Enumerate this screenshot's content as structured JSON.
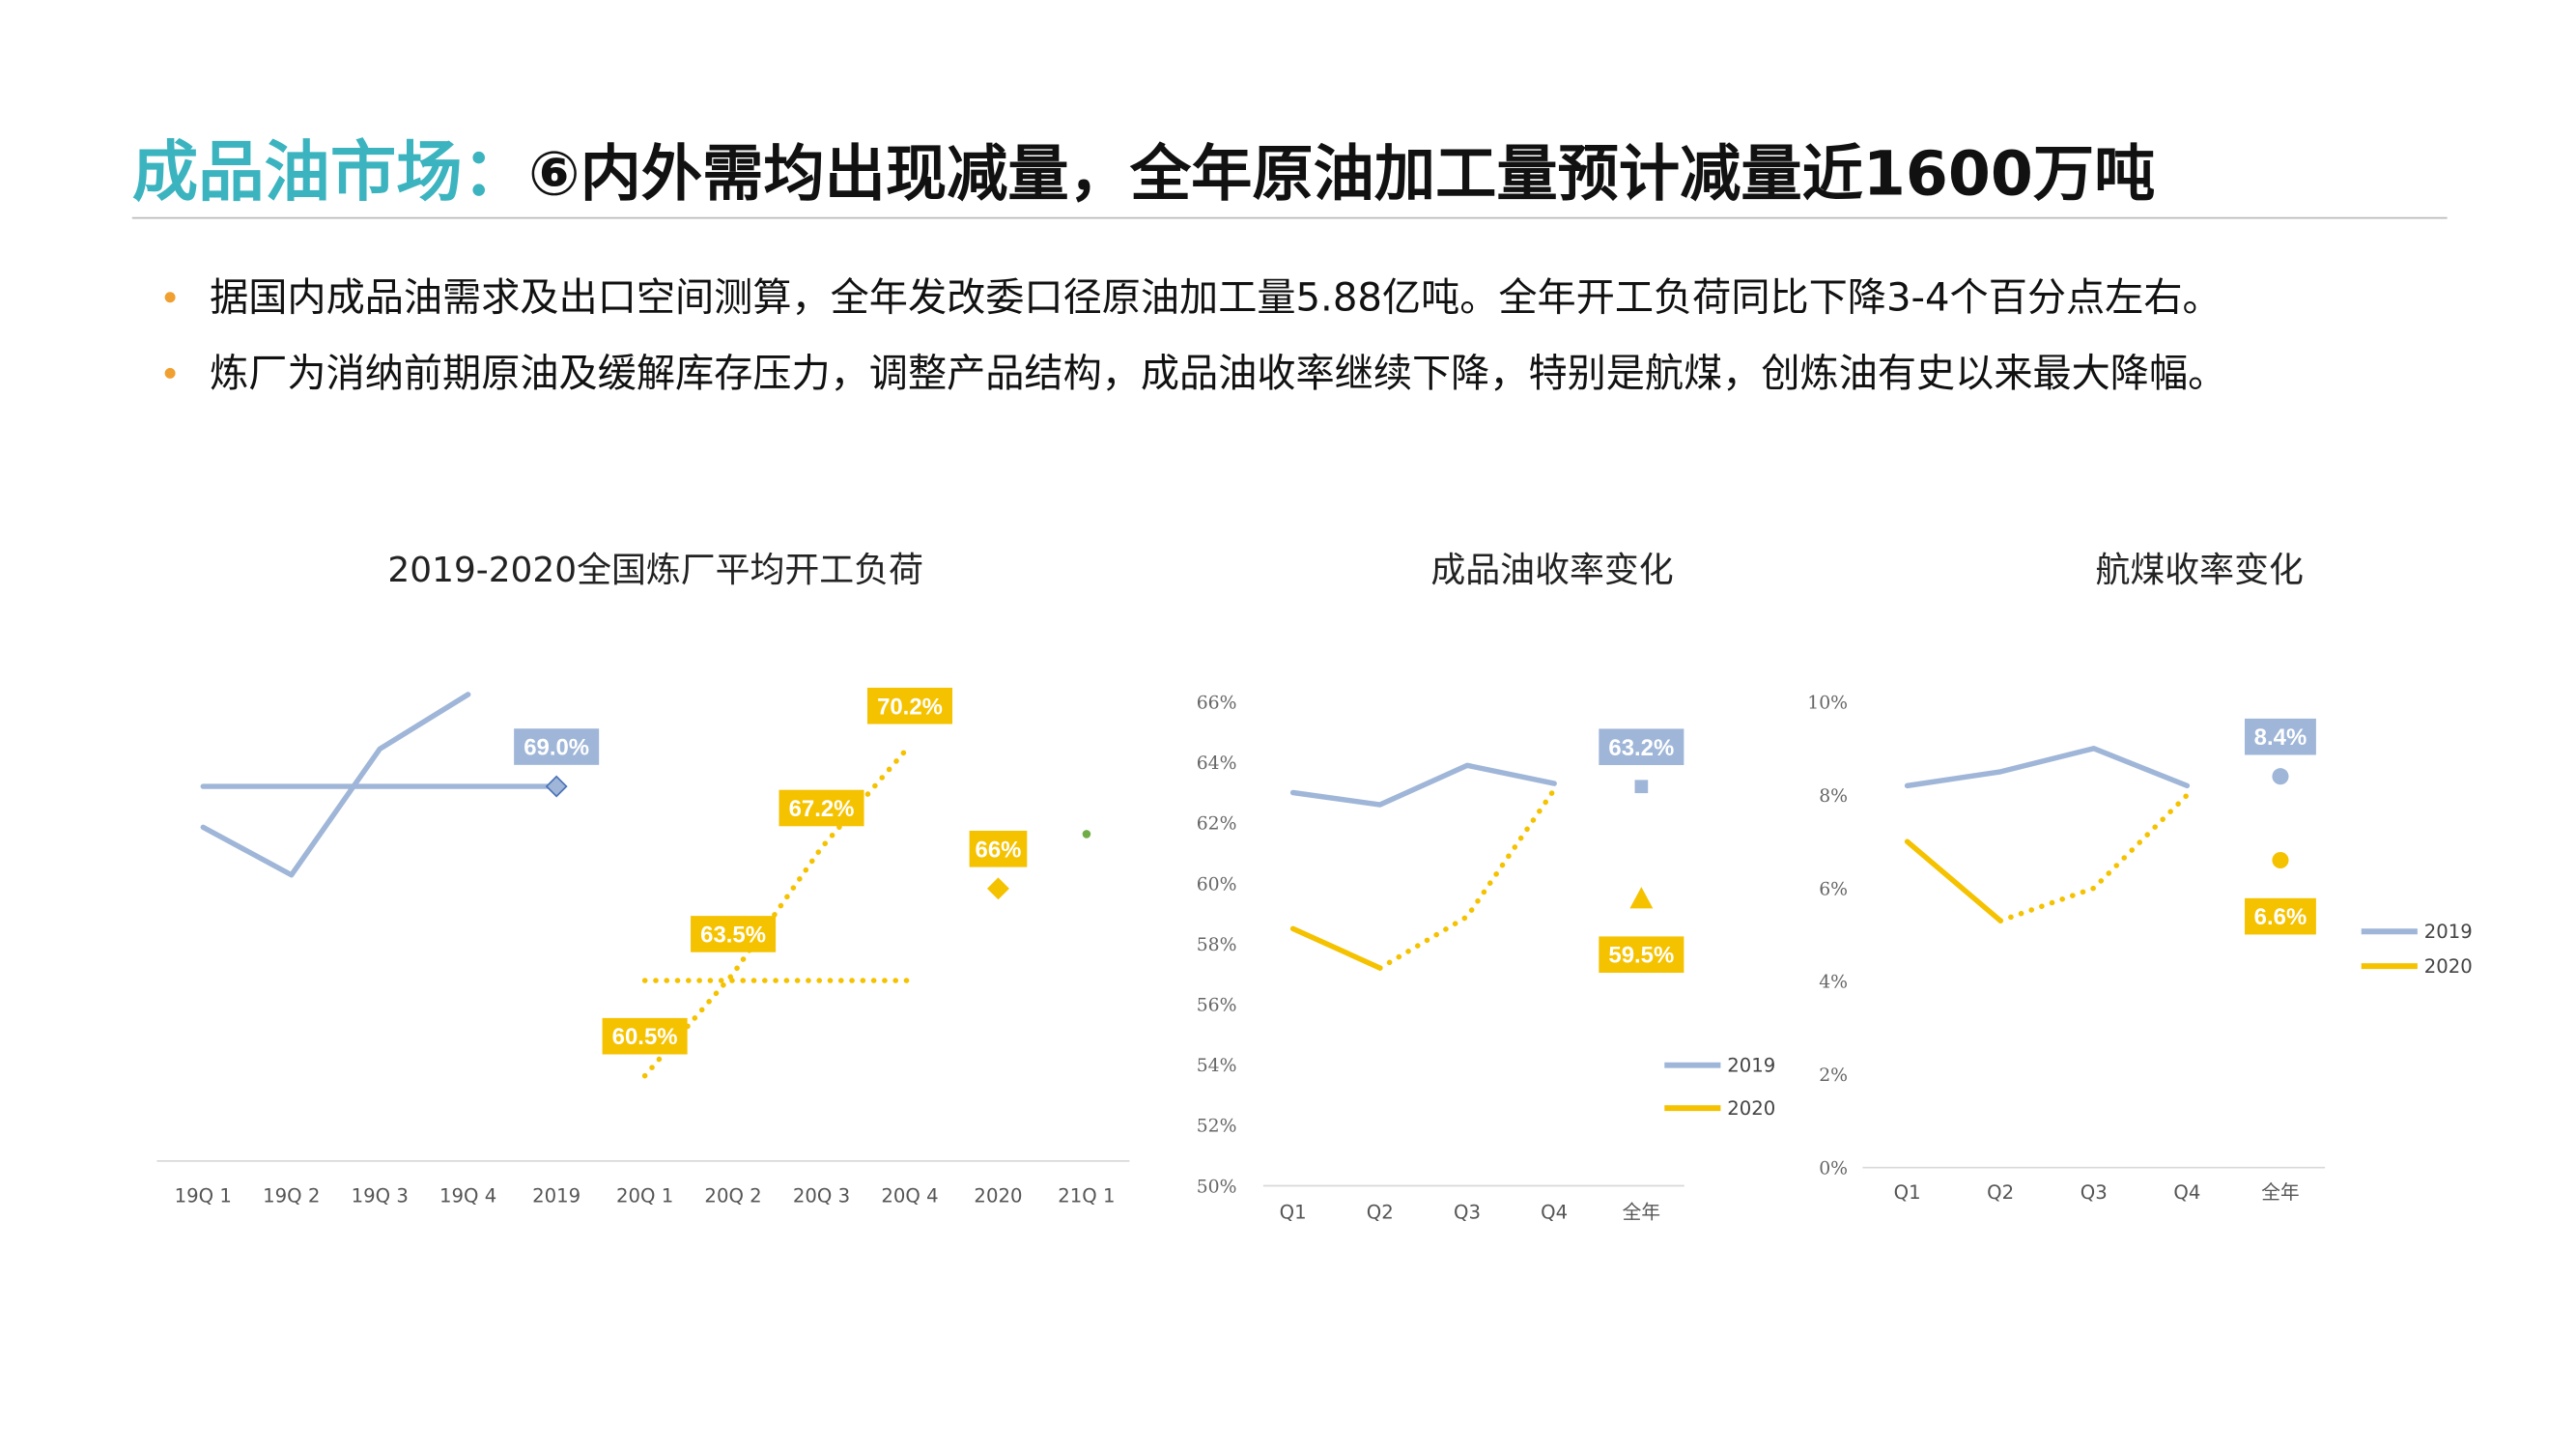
{
  "header": {
    "title_prefix": "成品油市场：",
    "title_main": "⑥内外需均出现减量，全年原油加工量预计减量近1600万吨"
  },
  "bullets": [
    "据国内成品油需求及出口空间测算，全年发改委口径原油加工量5.88亿吨。全年开工负荷同比下降3-4个百分点左右。",
    "炼厂为消纳前期原油及缓解库存压力，调整产品结构，成品油收率继续下降，特别是航煤，创炼油有史以来最大降幅。"
  ],
  "chart_data": [
    {
      "type": "line",
      "title": "2019-2020全国炼厂平均开工负荷",
      "categories": [
        "19Q 1",
        "19Q 2",
        "19Q 3",
        "19Q 4",
        "2019",
        "20Q 1",
        "20Q 2",
        "20Q 3",
        "20Q 4",
        "2020",
        "21Q 1"
      ],
      "ylim": [
        58,
        72.5
      ],
      "series": [
        {
          "color": "#9fb6d8",
          "values": [
            67.8,
            66.4,
            70.1,
            71.7,
            null,
            null,
            null,
            null,
            null,
            null,
            null
          ]
        },
        {
          "color": "#9fb6d8",
          "marker": "diamond",
          "label_pos": "above",
          "values": [
            69,
            69,
            69,
            69,
            69,
            null,
            null,
            null,
            null,
            null,
            null
          ],
          "value_labels": [
            null,
            null,
            null,
            null,
            "69.0%",
            null,
            null,
            null,
            null,
            null,
            null
          ]
        },
        {
          "color": "#f5c200",
          "dotted_from": 0,
          "label_pos": "above",
          "values": [
            null,
            null,
            null,
            null,
            null,
            60.5,
            63.5,
            67.2,
            70.2,
            null,
            null
          ],
          "value_labels": [
            null,
            null,
            null,
            null,
            null,
            "60.5%",
            "63.5%",
            "67.2%",
            "70.2%",
            null,
            null
          ]
        },
        {
          "color": "#f5c200",
          "dotted_from": 0,
          "values": [
            null,
            null,
            null,
            null,
            null,
            63.3,
            63.3,
            63.3,
            63.3,
            null,
            null
          ]
        },
        {
          "color": "#f5c200",
          "line": false,
          "marker": "diamond",
          "label_pos": "above",
          "values": [
            null,
            null,
            null,
            null,
            null,
            null,
            null,
            null,
            null,
            66,
            null
          ],
          "value_labels": [
            null,
            null,
            null,
            null,
            null,
            null,
            null,
            null,
            null,
            "66%",
            null
          ]
        },
        {
          "color": "#70ad47",
          "line": false,
          "marker": "dot",
          "values": [
            null,
            null,
            null,
            null,
            null,
            null,
            null,
            null,
            null,
            null,
            67.6
          ]
        }
      ]
    },
    {
      "type": "line",
      "title": "成品油收率变化",
      "categories": [
        "Q1",
        "Q2",
        "Q3",
        "Q4",
        "全年"
      ],
      "separate_last": true,
      "legend": "lower right",
      "ylim": [
        50,
        66
      ],
      "yticks": [
        {
          "value": 50,
          "label": "50%"
        },
        {
          "value": 52,
          "label": "52%"
        },
        {
          "value": 54,
          "label": "54%"
        },
        {
          "value": 56,
          "label": "56%"
        },
        {
          "value": 58,
          "label": "58%"
        },
        {
          "value": 60,
          "label": "60%"
        },
        {
          "value": 62,
          "label": "62%"
        },
        {
          "value": 64,
          "label": "64%"
        },
        {
          "value": 66,
          "label": "66%"
        }
      ],
      "series": [
        {
          "name": "2019",
          "color": "#9fb6d8",
          "marker": "square",
          "label_pos": "above",
          "values": [
            63.0,
            62.6,
            63.9,
            63.3,
            63.2
          ],
          "value_labels": [
            null,
            null,
            null,
            null,
            "63.2%"
          ]
        },
        {
          "name": "2020",
          "color": "#f5c200",
          "dotted_from": 1,
          "marker": "triangle",
          "label_pos": "below",
          "values": [
            58.5,
            57.2,
            58.9,
            63.1,
            59.5
          ],
          "value_labels": [
            null,
            null,
            null,
            null,
            "59.5%"
          ]
        }
      ]
    },
    {
      "type": "line",
      "title": "航煤收率变化",
      "categories": [
        "Q1",
        "Q2",
        "Q3",
        "Q4",
        "全年"
      ],
      "separate_last": true,
      "legend": "right",
      "ylim": [
        0,
        10
      ],
      "yticks": [
        {
          "value": 0,
          "label": "0%"
        },
        {
          "value": 2,
          "label": "2%"
        },
        {
          "value": 4,
          "label": "4%"
        },
        {
          "value": 6,
          "label": "6%"
        },
        {
          "value": 8,
          "label": "8%"
        },
        {
          "value": 10,
          "label": "10%"
        }
      ],
      "series": [
        {
          "name": "2019",
          "color": "#9fb6d8",
          "marker": "circle",
          "label_pos": "above",
          "values": [
            8.2,
            8.5,
            9.0,
            8.2,
            8.4
          ],
          "value_labels": [
            null,
            null,
            null,
            null,
            "8.4%"
          ]
        },
        {
          "name": "2020",
          "color": "#f5c200",
          "dotted_from": 1,
          "marker": "circle",
          "label_pos": "below",
          "values": [
            7.0,
            5.3,
            6.0,
            8.0,
            6.6
          ],
          "value_labels": [
            null,
            null,
            null,
            null,
            "6.6%"
          ]
        }
      ]
    }
  ]
}
